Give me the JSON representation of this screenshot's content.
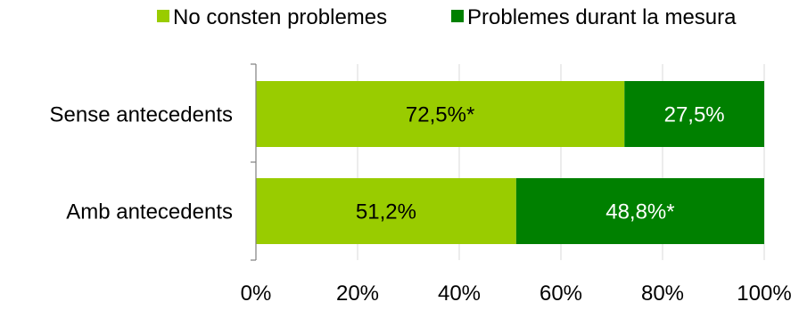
{
  "chart_data": {
    "type": "bar",
    "orientation": "horizontal",
    "stacked": true,
    "categories": [
      "Sense antecedents",
      "Amb antecedents"
    ],
    "series": [
      {
        "name": "No consten problemes",
        "color": "#99cc00",
        "values": [
          72.5,
          51.2
        ],
        "labels": [
          "72,5%*",
          "51,2%"
        ],
        "label_color": "#000000"
      },
      {
        "name": "Problemes durant la mesura",
        "color": "#008000",
        "values": [
          27.5,
          48.8
        ],
        "labels": [
          "27,5%",
          "48,8%*"
        ],
        "label_color": "#ffffff"
      }
    ],
    "xlim": [
      0,
      100
    ],
    "x_ticks": [
      "0%",
      "20%",
      "40%",
      "60%",
      "80%",
      "100%"
    ],
    "x_tick_values": [
      0,
      20,
      40,
      60,
      80,
      100
    ],
    "grid": true,
    "legend_position": "top",
    "title": "",
    "xlabel": "",
    "ylabel": ""
  }
}
